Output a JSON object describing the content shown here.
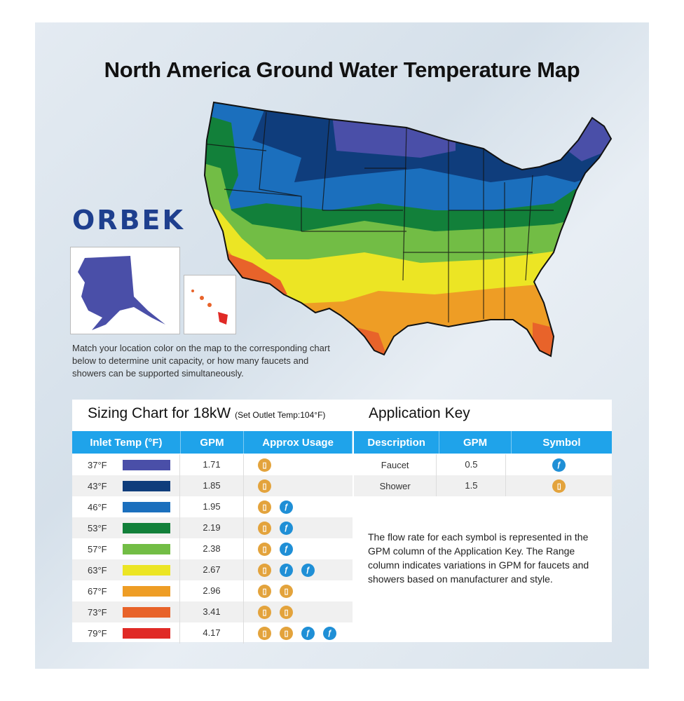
{
  "title": "North America Ground Water Temperature Map",
  "brand": "ORBEK",
  "description": "Match your location color on the map to the corresponding chart below to determine unit capacity, or how many faucets and showers can be supported simultaneously.",
  "sizing": {
    "title": "Sizing Chart for 18kW",
    "subtitle": "(Set Outlet Temp:104°F)",
    "headers": [
      "Inlet Temp (°F)",
      "GPM",
      "Approx Usage"
    ],
    "rows": [
      {
        "temp": "37°F",
        "color": "#4a4fa8",
        "gpm": "1.71",
        "icons": [
          "shower"
        ]
      },
      {
        "temp": "43°F",
        "color": "#0f3d7c",
        "gpm": "1.85",
        "icons": [
          "shower"
        ]
      },
      {
        "temp": "46°F",
        "color": "#1b6fbd",
        "gpm": "1.95",
        "icons": [
          "shower",
          "faucet"
        ]
      },
      {
        "temp": "53°F",
        "color": "#12803a",
        "gpm": "2.19",
        "icons": [
          "shower",
          "faucet"
        ]
      },
      {
        "temp": "57°F",
        "color": "#72bd45",
        "gpm": "2.38",
        "icons": [
          "shower",
          "faucet"
        ]
      },
      {
        "temp": "63°F",
        "color": "#ece524",
        "gpm": "2.67",
        "icons": [
          "shower",
          "faucet",
          "faucet"
        ]
      },
      {
        "temp": "67°F",
        "color": "#ee9d25",
        "gpm": "2.96",
        "icons": [
          "shower",
          "shower"
        ]
      },
      {
        "temp": "73°F",
        "color": "#e8632a",
        "gpm": "3.41",
        "icons": [
          "shower",
          "shower"
        ]
      },
      {
        "temp": "79°F",
        "color": "#e02a26",
        "gpm": "4.17",
        "icons": [
          "shower",
          "shower",
          "faucet",
          "faucet"
        ]
      }
    ]
  },
  "app_key": {
    "title": "Application Key",
    "headers": [
      "Description",
      "GPM",
      "Symbol"
    ],
    "rows": [
      {
        "desc": "Faucet",
        "gpm": "0.5",
        "icon": "faucet"
      },
      {
        "desc": "Shower",
        "gpm": "1.5",
        "icon": "shower"
      }
    ],
    "note": "The flow rate for each symbol is represented in the GPM column of the Application Key. The Range column indicates variations in GPM for faucets and showers based on manufacturer and style."
  }
}
